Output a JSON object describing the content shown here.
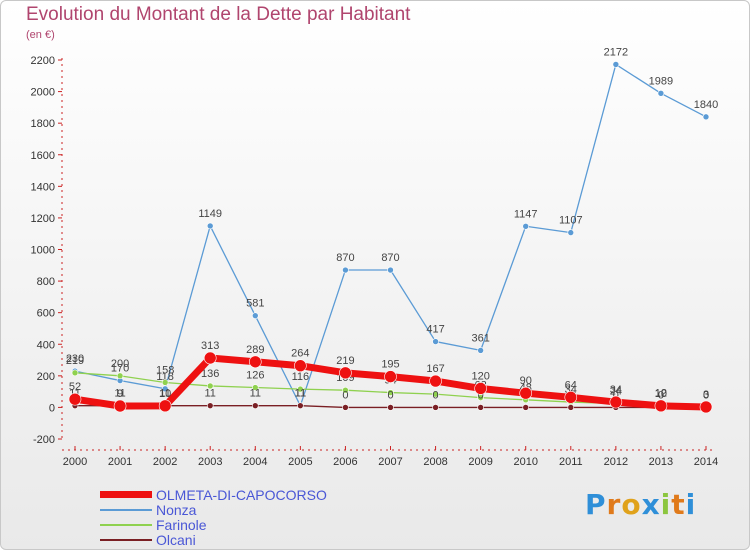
{
  "header": {
    "title": "Evolution du Montant de la Dette par Habitant",
    "subtitle": "(en €)"
  },
  "logo": {
    "text": "Proxiti"
  },
  "chart_data": {
    "type": "line",
    "title": "Evolution du Montant de la Dette par Habitant",
    "subtitle": "(en €)",
    "xlabel": "",
    "ylabel": "",
    "x": [
      2000,
      2001,
      2002,
      2003,
      2004,
      2005,
      2006,
      2007,
      2008,
      2009,
      2010,
      2011,
      2012,
      2013,
      2014
    ],
    "ylim": [
      -200,
      2200
    ],
    "yticks": [
      -200,
      0,
      200,
      400,
      600,
      800,
      1000,
      1200,
      1400,
      1600,
      1800,
      2000,
      2200
    ],
    "grid": false,
    "legend_position": "bottom-left",
    "series": [
      {
        "name": "Nonza",
        "color": "#5b9bd5",
        "values": [
          230,
          170,
          118,
          1149,
          581,
          11,
          870,
          870,
          417,
          361,
          1147,
          1107,
          2172,
          1989,
          1840
        ]
      },
      {
        "name": "Farinole",
        "color": "#8fd14f",
        "values": [
          219,
          200,
          158,
          136,
          126,
          116,
          109,
          94,
          84,
          62,
          48,
          34,
          24,
          12,
          0
        ]
      },
      {
        "name": "Olcani",
        "color": "#7a1f24",
        "values": [
          11,
          11,
          11,
          11,
          11,
          11,
          0,
          0,
          0,
          0,
          0,
          0,
          0,
          0,
          0
        ]
      },
      {
        "name": "OLMETA-DI-CAPOCORSO",
        "color": "#ee1111",
        "values": [
          52,
          9,
          10,
          313,
          289,
          264,
          219,
          195,
          167,
          120,
          90,
          64,
          34,
          10,
          3
        ]
      }
    ],
    "data_labels": [
      {
        "series": "Nonza",
        "labels": [
          "230",
          "170",
          "118",
          "1149",
          "581",
          "11",
          "870",
          "870",
          "417",
          "361",
          "1147",
          "1107",
          "2172",
          "1989",
          "1840"
        ]
      },
      {
        "series": "Farinole",
        "labels": [
          "219",
          "200",
          "158",
          "136",
          "126",
          "116",
          "109",
          "94",
          "84",
          "62",
          "48",
          "34",
          "24",
          "12",
          "0"
        ]
      },
      {
        "series": "Olcani",
        "labels": [
          "11",
          "11",
          "11",
          "11",
          "11",
          "11",
          "0",
          "0",
          "0",
          "0",
          "0",
          "0",
          "0",
          "0",
          "0"
        ]
      },
      {
        "series": "OLMETA-DI-CAPOCORSO",
        "labels": [
          "52",
          "9",
          "10",
          "313",
          "289",
          "264",
          "219",
          "195",
          "167",
          "120",
          "90",
          "64",
          "34",
          "10",
          "3"
        ]
      }
    ]
  }
}
